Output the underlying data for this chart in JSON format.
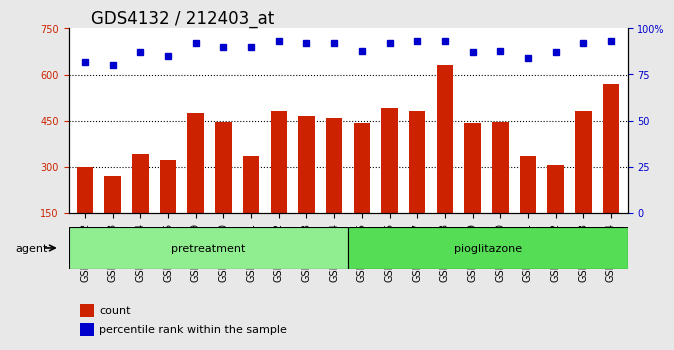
{
  "title": "GDS4132 / 212403_at",
  "categories": [
    "GSM201542",
    "GSM201543",
    "GSM201544",
    "GSM201545",
    "GSM201829",
    "GSM201830",
    "GSM201831",
    "GSM201832",
    "GSM201833",
    "GSM201834",
    "GSM201835",
    "GSM201836",
    "GSM201837",
    "GSM201838",
    "GSM201839",
    "GSM201840",
    "GSM201841",
    "GSM201842",
    "GSM201843",
    "GSM201844"
  ],
  "bar_values": [
    300,
    270,
    340,
    320,
    475,
    445,
    335,
    480,
    465,
    458,
    442,
    490,
    480,
    630,
    442,
    445,
    335,
    305,
    480,
    570
  ],
  "percentile_values": [
    82,
    80,
    87,
    85,
    92,
    90,
    90,
    93,
    92,
    92,
    88,
    92,
    93,
    93,
    87,
    88,
    84,
    87,
    92,
    93
  ],
  "pretreatment_samples": [
    "GSM201542",
    "GSM201543",
    "GSM201544",
    "GSM201545",
    "GSM201829",
    "GSM201830",
    "GSM201831",
    "GSM201832",
    "GSM201833",
    "GSM201834"
  ],
  "pioglitazone_samples": [
    "GSM201835",
    "GSM201836",
    "GSM201837",
    "GSM201838",
    "GSM201839",
    "GSM201840",
    "GSM201841",
    "GSM201842",
    "GSM201843",
    "GSM201844"
  ],
  "bar_color": "#cc2200",
  "percentile_color": "#0000cc",
  "background_color": "#e8e8e8",
  "plot_bg_color": "#ffffff",
  "ylim_left": [
    150,
    750
  ],
  "ylim_right": [
    0,
    100
  ],
  "yticks_left": [
    150,
    300,
    450,
    600,
    750
  ],
  "yticks_right": [
    0,
    25,
    50,
    75,
    100
  ],
  "grid_values": [
    300,
    450,
    600
  ],
  "agent_label": "agent",
  "pretreatment_label": "pretreatment",
  "pioglitazone_label": "pioglitazone",
  "legend_count_label": "count",
  "legend_percentile_label": "percentile rank within the sample",
  "title_fontsize": 12,
  "tick_fontsize": 7,
  "bar_width": 0.6
}
